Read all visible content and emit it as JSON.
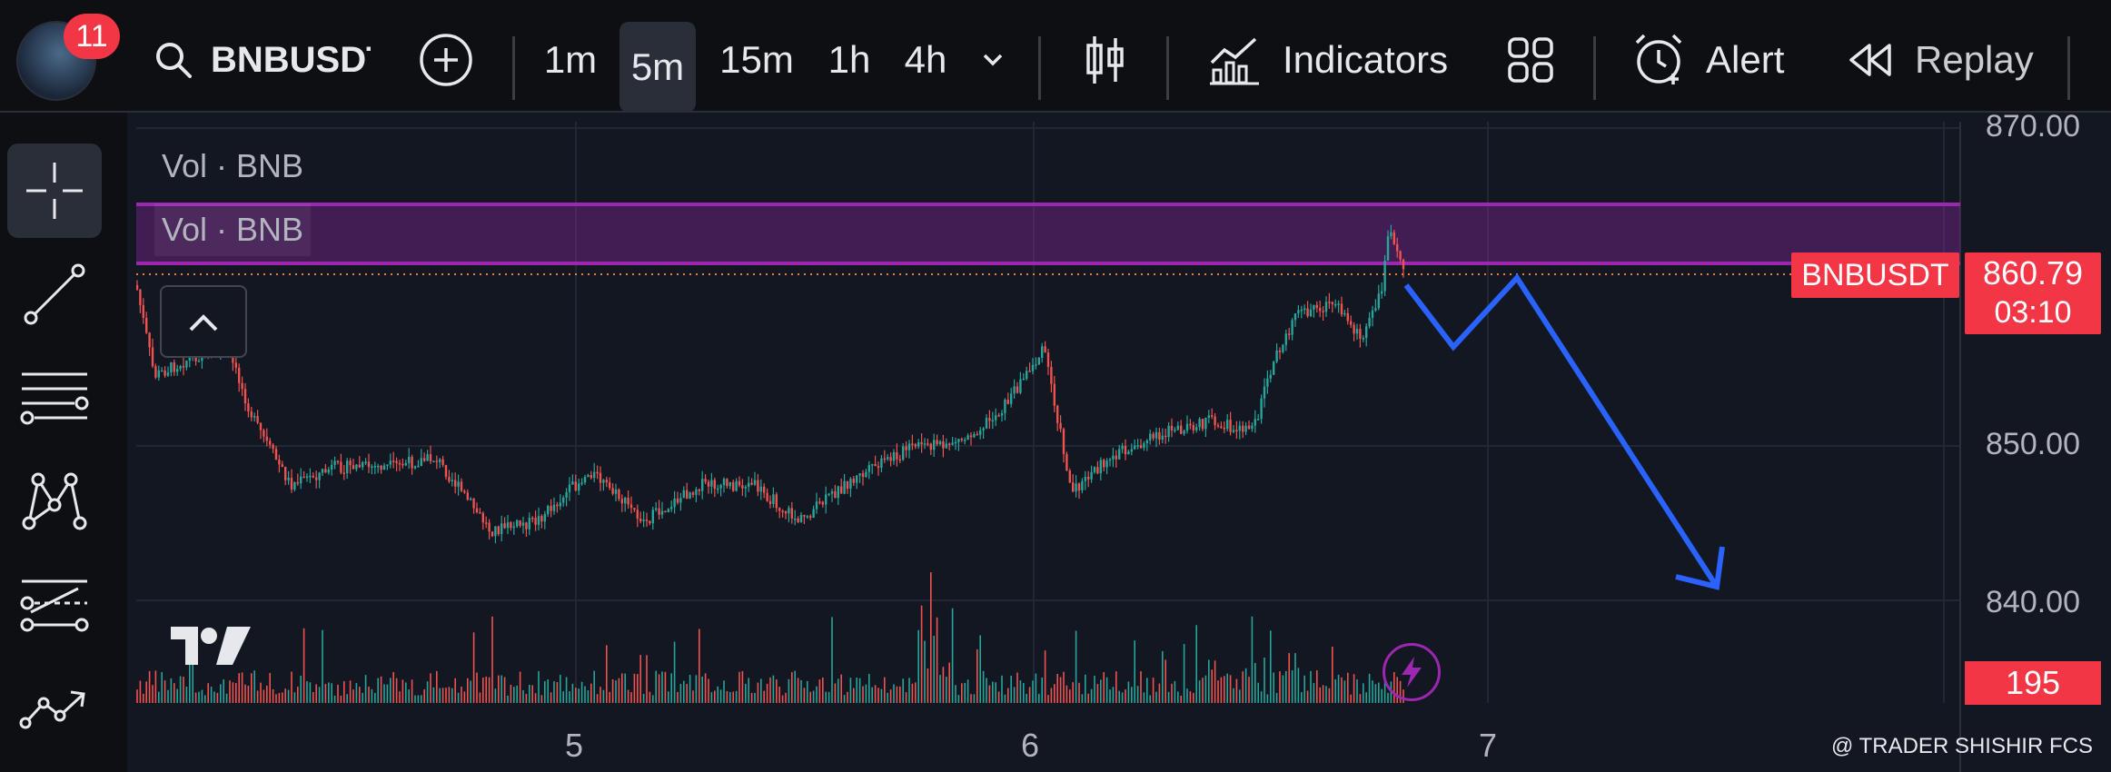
{
  "toolbar": {
    "notification_count": "11",
    "symbol": "BNBUSDT",
    "intervals": [
      "1m",
      "5m",
      "15m",
      "1h",
      "4h"
    ],
    "active_interval": "5m",
    "indicators_label": "Indicators",
    "alert_label": "Alert",
    "replay_label": "Replay"
  },
  "chart": {
    "volume_labels": [
      "Vol · BNB",
      "Vol · BNB"
    ],
    "price_axis": [
      "870.00",
      "850.00",
      "840.00"
    ],
    "time_axis": [
      "5",
      "6",
      "7"
    ],
    "last_price": "860.79",
    "countdown": "03:10",
    "symbol_tag": "BNBUSDT",
    "volume_value": "195",
    "watermark": "@ TRADER SHISHIR FCS"
  },
  "colors": {
    "up": "#26a69a",
    "down": "#ef5350",
    "resistance_zone": "#9c27b0",
    "projection": "#2962ff",
    "accent_red": "#f23645"
  }
}
